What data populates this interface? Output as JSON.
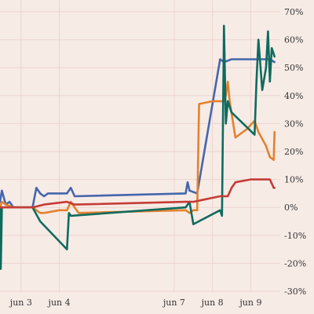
{
  "chart_data": {
    "type": "line",
    "title": "",
    "xlabel": "",
    "ylabel": "",
    "x_ticks": [
      {
        "day": 3,
        "label": "jun 3"
      },
      {
        "day": 4,
        "label": "jun 4"
      },
      {
        "day": 7,
        "label": "jun 7"
      },
      {
        "day": 8,
        "label": "jun 8"
      },
      {
        "day": 9,
        "label": "jun 9"
      }
    ],
    "y_ticks": [
      {
        "value": 70,
        "label": "70%"
      },
      {
        "value": 60,
        "label": "60%"
      },
      {
        "value": 50,
        "label": "50%"
      },
      {
        "value": 40,
        "label": "40%"
      },
      {
        "value": 30,
        "label": "30%"
      },
      {
        "value": 20,
        "label": "20%"
      },
      {
        "value": 10,
        "label": "10%"
      },
      {
        "value": 0,
        "label": "0%"
      },
      {
        "value": -10,
        "label": "-10%"
      },
      {
        "value": -20,
        "label": "-20%"
      },
      {
        "value": -30,
        "label": "-30%"
      }
    ],
    "xlim": [
      2.45,
      9.75
    ],
    "ylim": [
      -30,
      70
    ],
    "y_axis_position": "right",
    "grid": {
      "vertical": true,
      "horizontal": true
    },
    "series": [
      {
        "color": "#4466ab",
        "points": [
          [
            2.45,
            2
          ],
          [
            2.5,
            6
          ],
          [
            2.6,
            1
          ],
          [
            2.7,
            2
          ],
          [
            2.8,
            0
          ],
          [
            3.3,
            0
          ],
          [
            3.4,
            7
          ],
          [
            3.5,
            5
          ],
          [
            3.6,
            4
          ],
          [
            3.7,
            5
          ],
          [
            4.0,
            5
          ],
          [
            4.2,
            5
          ],
          [
            4.3,
            7
          ],
          [
            4.4,
            4
          ],
          [
            7.3,
            5
          ],
          [
            7.35,
            9
          ],
          [
            7.4,
            6
          ],
          [
            7.6,
            5
          ],
          [
            8.2,
            53
          ],
          [
            8.3,
            52
          ],
          [
            8.5,
            53
          ],
          [
            9.0,
            53
          ],
          [
            9.5,
            53
          ],
          [
            9.62,
            52
          ]
        ]
      },
      {
        "color": "#e2822f",
        "points": [
          [
            2.45,
            0
          ],
          [
            2.5,
            2
          ],
          [
            2.6,
            1
          ],
          [
            2.8,
            0
          ],
          [
            3.3,
            0
          ],
          [
            3.5,
            -2
          ],
          [
            3.6,
            -2
          ],
          [
            4.0,
            -1
          ],
          [
            4.2,
            -1
          ],
          [
            4.3,
            2
          ],
          [
            4.5,
            -2
          ],
          [
            7.3,
            -1
          ],
          [
            7.4,
            -2
          ],
          [
            7.5,
            -1
          ],
          [
            7.6,
            -1
          ],
          [
            7.65,
            37
          ],
          [
            8.0,
            38
          ],
          [
            8.3,
            38
          ],
          [
            8.35,
            40
          ],
          [
            8.4,
            45
          ],
          [
            8.45,
            38
          ],
          [
            8.6,
            25
          ],
          [
            8.9,
            28
          ],
          [
            9.1,
            31
          ],
          [
            9.2,
            27
          ],
          [
            9.4,
            22
          ],
          [
            9.5,
            18
          ],
          [
            9.6,
            17
          ],
          [
            9.62,
            27
          ]
        ]
      },
      {
        "color": "#0f6b5e",
        "points": [
          [
            2.45,
            0
          ],
          [
            2.47,
            -22
          ],
          [
            2.5,
            0
          ],
          [
            2.7,
            0
          ],
          [
            3.3,
            0
          ],
          [
            3.5,
            -5
          ],
          [
            4.2,
            -15
          ],
          [
            4.25,
            -2
          ],
          [
            4.3,
            -3
          ],
          [
            7.3,
            0
          ],
          [
            7.4,
            2
          ],
          [
            7.5,
            -6
          ],
          [
            8.2,
            -1
          ],
          [
            8.25,
            -3
          ],
          [
            8.3,
            65
          ],
          [
            8.35,
            30
          ],
          [
            8.4,
            38
          ],
          [
            8.5,
            34
          ],
          [
            8.8,
            30
          ],
          [
            9.1,
            26
          ],
          [
            9.15,
            45
          ],
          [
            9.2,
            60
          ],
          [
            9.3,
            42
          ],
          [
            9.4,
            50
          ],
          [
            9.45,
            63
          ],
          [
            9.5,
            45
          ],
          [
            9.55,
            57
          ],
          [
            9.62,
            54
          ]
        ]
      },
      {
        "color": "#c43c35",
        "points": [
          [
            2.45,
            0
          ],
          [
            2.8,
            0
          ],
          [
            3.3,
            0
          ],
          [
            3.6,
            1
          ],
          [
            4.2,
            2
          ],
          [
            4.4,
            1
          ],
          [
            7.3,
            2
          ],
          [
            7.5,
            2
          ],
          [
            8.2,
            4
          ],
          [
            8.4,
            4
          ],
          [
            8.5,
            7
          ],
          [
            8.6,
            9
          ],
          [
            9.0,
            10
          ],
          [
            9.5,
            10
          ],
          [
            9.6,
            7
          ],
          [
            9.62,
            7
          ]
        ]
      }
    ]
  }
}
